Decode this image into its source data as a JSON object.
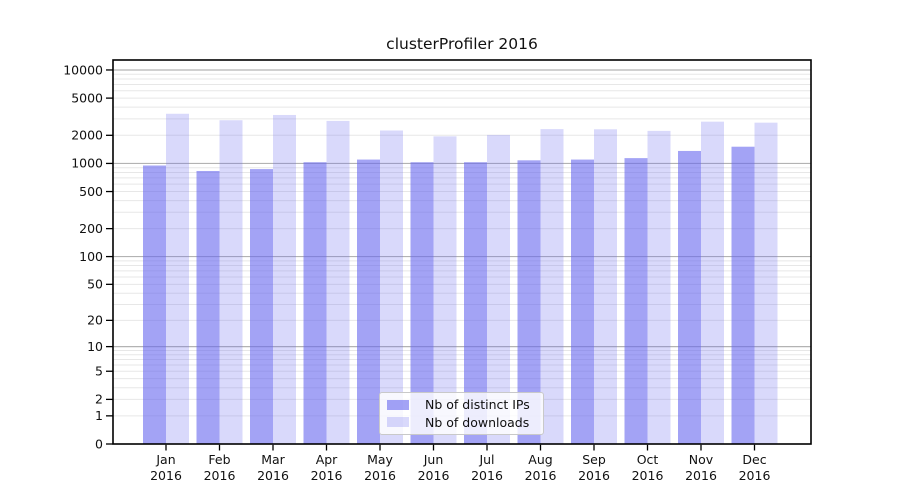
{
  "page": {
    "background": "#ffffff"
  },
  "chart_data": {
    "type": "bar",
    "title": "clusterProfiler 2016",
    "categories": [
      "Jan",
      "Feb",
      "Mar",
      "Apr",
      "May",
      "Jun",
      "Jul",
      "Aug",
      "Sep",
      "Oct",
      "Nov",
      "Dec"
    ],
    "category_year": "2016",
    "series": [
      {
        "name": "Nb of distinct IPs",
        "values": [
          950,
          830,
          870,
          1030,
          1100,
          1030,
          1030,
          1080,
          1100,
          1140,
          1360,
          1510
        ],
        "color": "rgba(102,102,238,0.6)"
      },
      {
        "name": "Nb of downloads",
        "values": [
          3400,
          2900,
          3300,
          2850,
          2250,
          1950,
          2020,
          2330,
          2320,
          2230,
          2800,
          2730
        ],
        "color": "rgba(102,102,238,0.25)"
      }
    ],
    "y_scale": "log1p",
    "ylim": [
      0,
      12800
    ],
    "y_ticks": [
      0,
      1,
      2,
      5,
      10,
      20,
      50,
      100,
      200,
      500,
      1000,
      2000,
      5000,
      10000
    ],
    "y_grid_major": [
      10,
      100,
      1000,
      10000
    ],
    "grid": true,
    "legend_position": "lower center",
    "colors": {
      "grid_major": "#b3b3b3",
      "grid_minor": "#e7e7e7",
      "axis": "#000000",
      "tick_label": "#111111"
    }
  }
}
